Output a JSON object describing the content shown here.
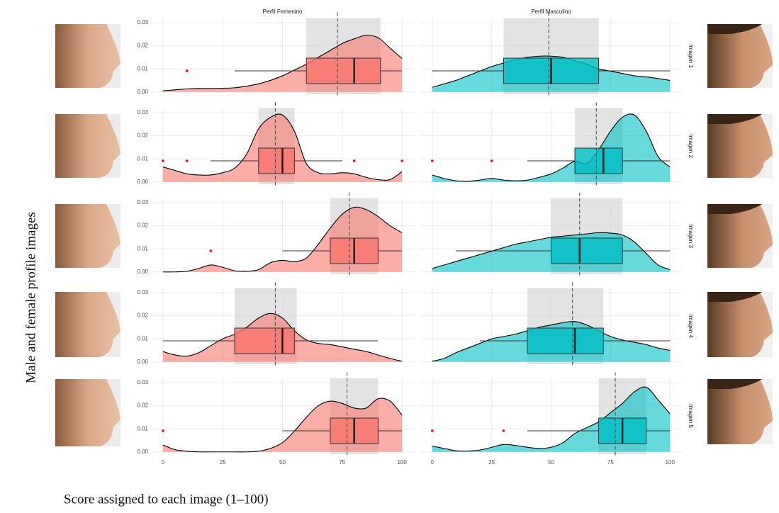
{
  "chart_data": {
    "type": "density-box",
    "ylabel": "Male and female profile images",
    "xlabel": "Score assigned to each image (1–100)",
    "rows": [
      "Imagen 1",
      "Imagen 2",
      "Imagen 3",
      "Imagen 4",
      "Imagen 5"
    ],
    "x": [
      0,
      5,
      10,
      15,
      20,
      25,
      30,
      35,
      40,
      45,
      50,
      55,
      60,
      65,
      70,
      75,
      80,
      85,
      90,
      95,
      100
    ],
    "xlim": [
      -5,
      105
    ],
    "xticks": [
      0,
      25,
      50,
      75,
      100
    ],
    "ylim": [
      -0.001,
      0.032
    ],
    "yticks": [
      {
        "value": 0,
        "label": "0.00"
      },
      {
        "value": 0.01,
        "label": "0.01"
      },
      {
        "value": 0.02,
        "label": "0.02"
      },
      {
        "value": 0.03,
        "label": "0.03"
      }
    ],
    "grid": true,
    "series": [
      {
        "name": "Perfil Femenino",
        "color": "#f8766d",
        "outlier_color": "#ff0000",
        "panels": [
          {
            "density": [
              0.0005,
              0.0009,
              0.0013,
              0.0015,
              0.0015,
              0.0016,
              0.0018,
              0.0025,
              0.0035,
              0.005,
              0.007,
              0.0095,
              0.012,
              0.015,
              0.018,
              0.021,
              0.023,
              0.0245,
              0.0235,
              0.019,
              0.0145
            ],
            "box": [
              60,
              80,
              91
            ],
            "whiskers": [
              30,
              100
            ],
            "outliers": [
              10
            ],
            "mean": 73,
            "band": [
              60,
              91
            ]
          },
          {
            "density": [
              0.0065,
              0.005,
              0.0035,
              0.003,
              0.003,
              0.004,
              0.006,
              0.012,
              0.023,
              0.028,
              0.029,
              0.022,
              0.008,
              0.004,
              0.0035,
              0.004,
              0.0035,
              0.002,
              0.001,
              0.001,
              0.0045
            ],
            "box": [
              40,
              50,
              55
            ],
            "whiskers": [
              20,
              75
            ],
            "outliers": [
              0,
              10,
              80,
              100
            ],
            "mean": 47,
            "band": [
              40,
              55
            ]
          },
          {
            "density": [
              0,
              0,
              0.0003,
              0.0015,
              0.003,
              0.002,
              0.0005,
              0.0003,
              0.001,
              0.004,
              0.005,
              0.0045,
              0.006,
              0.012,
              0.019,
              0.025,
              0.028,
              0.027,
              0.024,
              0.02,
              0.017
            ],
            "box": [
              70,
              80,
              90
            ],
            "whiskers": [
              50,
              100
            ],
            "outliers": [
              20
            ],
            "mean": 78,
            "band": [
              70,
              90
            ]
          },
          {
            "density": [
              0.0045,
              0.003,
              0.0025,
              0.004,
              0.007,
              0.01,
              0.012,
              0.015,
              0.019,
              0.021,
              0.019,
              0.0135,
              0.0095,
              0.008,
              0.0075,
              0.0065,
              0.0055,
              0.0045,
              0.003,
              0.0015,
              0.0003
            ],
            "box": [
              30,
              50,
              55
            ],
            "whiskers": [
              0,
              90
            ],
            "outliers": [],
            "mean": 47,
            "band": [
              30,
              56
            ]
          },
          {
            "density": [
              0.003,
              0.001,
              0.0003,
              0,
              0,
              0,
              0,
              0,
              0.0003,
              0.0015,
              0.004,
              0.009,
              0.015,
              0.02,
              0.022,
              0.021,
              0.019,
              0.019,
              0.023,
              0.022,
              0.016
            ],
            "box": [
              70,
              80,
              90
            ],
            "whiskers": [
              50,
              100
            ],
            "outliers": [
              0
            ],
            "mean": 77,
            "band": [
              70,
              90
            ]
          }
        ]
      },
      {
        "name": "Perfil Masculino",
        "color": "#00bfc4",
        "outlier_color": "#ff0000",
        "panels": [
          {
            "density": [
              0.002,
              0.0035,
              0.005,
              0.007,
              0.009,
              0.011,
              0.0125,
              0.014,
              0.015,
              0.0155,
              0.0155,
              0.015,
              0.0135,
              0.012,
              0.01,
              0.009,
              0.008,
              0.007,
              0.0065,
              0.0058,
              0.005
            ],
            "box": [
              30,
              50,
              70
            ],
            "whiskers": [
              0,
              100
            ],
            "outliers": [],
            "mean": 49,
            "band": [
              30,
              70
            ]
          },
          {
            "density": [
              0.003,
              0.0015,
              0.0005,
              0.0003,
              0.0008,
              0.0015,
              0.0008,
              0.0005,
              0.0008,
              0.002,
              0.0035,
              0.006,
              0.009,
              0.008,
              0.014,
              0.022,
              0.028,
              0.029,
              0.022,
              0.011,
              0.0065
            ],
            "box": [
              60,
              72,
              80
            ],
            "whiskers": [
              40,
              100
            ],
            "outliers": [
              0,
              25
            ],
            "mean": 69,
            "band": [
              60,
              80
            ]
          },
          {
            "density": [
              0.0015,
              0.003,
              0.0045,
              0.006,
              0.0075,
              0.009,
              0.0105,
              0.012,
              0.013,
              0.014,
              0.015,
              0.0155,
              0.016,
              0.0165,
              0.017,
              0.0168,
              0.016,
              0.013,
              0.008,
              0.003,
              0.001
            ],
            "box": [
              50,
              62,
              80
            ],
            "whiskers": [
              10,
              100
            ],
            "outliers": [],
            "mean": 62,
            "band": [
              50,
              80
            ]
          },
          {
            "density": [
              0.0003,
              0.0015,
              0.004,
              0.006,
              0.008,
              0.01,
              0.011,
              0.012,
              0.0135,
              0.015,
              0.016,
              0.017,
              0.0175,
              0.016,
              0.0135,
              0.011,
              0.0095,
              0.0085,
              0.0075,
              0.006,
              0.005
            ],
            "box": [
              40,
              60,
              72
            ],
            "whiskers": [
              20,
              100
            ],
            "outliers": [],
            "mean": 59,
            "band": [
              40,
              72
            ]
          },
          {
            "density": [
              0.0025,
              0.0015,
              0.0005,
              0.0004,
              0.0008,
              0.002,
              0.0032,
              0.0028,
              0.002,
              0.0015,
              0.002,
              0.004,
              0.008,
              0.0105,
              0.013,
              0.017,
              0.021,
              0.026,
              0.028,
              0.0225,
              0.0165
            ],
            "box": [
              70,
              80,
              90
            ],
            "whiskers": [
              40,
              100
            ],
            "outliers": [
              0,
              30
            ],
            "mean": 77,
            "band": [
              70,
              90
            ]
          }
        ]
      }
    ]
  }
}
